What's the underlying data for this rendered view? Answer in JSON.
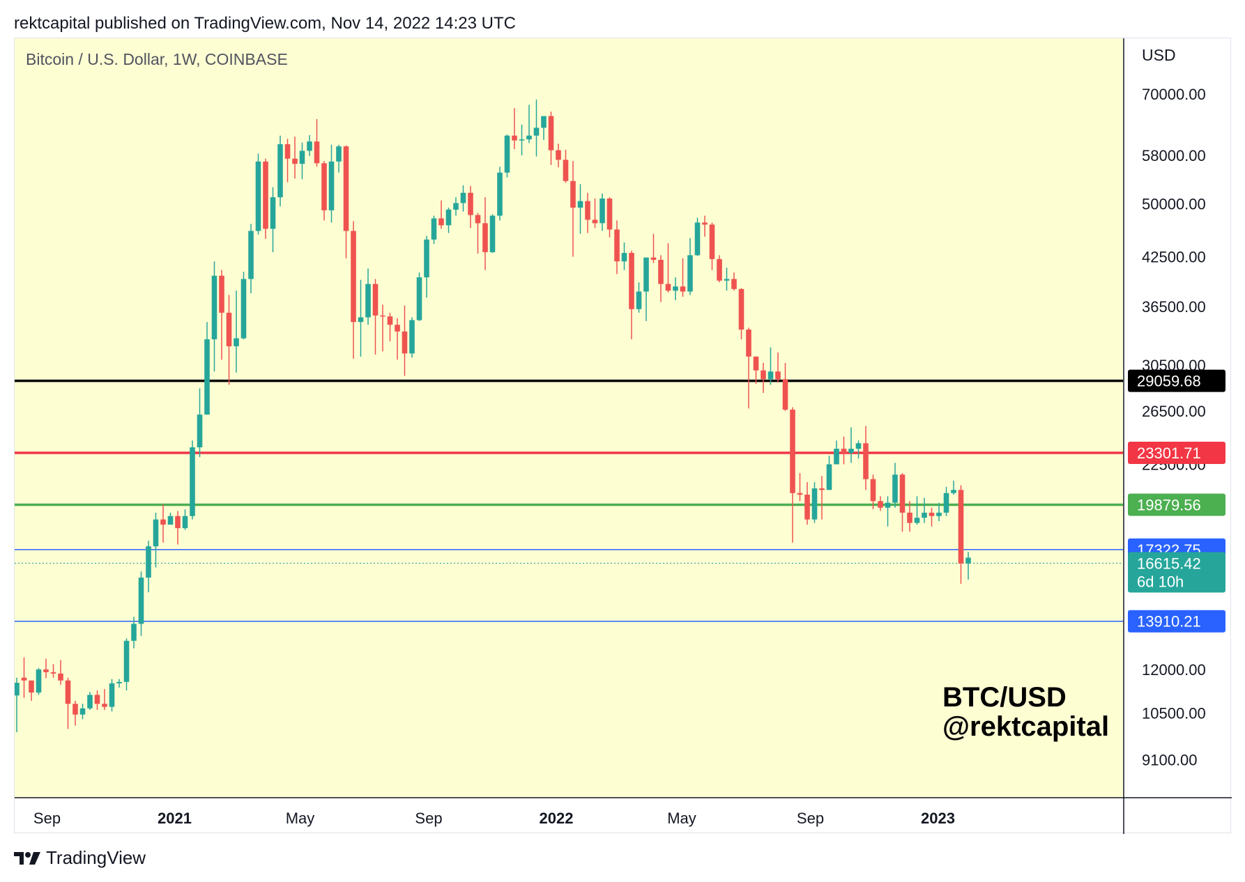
{
  "header": {
    "text": "rektcapital published on TradingView.com, Nov 14, 2022 14:23 UTC"
  },
  "footer": {
    "brand": "TradingView"
  },
  "watermark": {
    "line1": "BTC/USD",
    "line2": "@rektcapital"
  },
  "colors": {
    "chart_bg": "#fefed3",
    "up": "#26a69a",
    "down": "#ef5350",
    "support_black": "#000000",
    "level_red": "#f23645",
    "level_green": "#4caf50",
    "level_blue": "#2962ff",
    "current_price": "#26a69a"
  },
  "chart_data": {
    "type": "candlestick",
    "title": "Bitcoin / U.S. Dollar, 1W, COINBASE",
    "currency": "USD",
    "yscale": "log",
    "ylim": [
      8100,
      83000
    ],
    "x_tick_labels": [
      {
        "label": "Sep",
        "date": "2020-09-01",
        "bold": false
      },
      {
        "label": "2021",
        "date": "2021-01-01",
        "bold": true
      },
      {
        "label": "May",
        "date": "2021-05-01",
        "bold": false
      },
      {
        "label": "Sep",
        "date": "2021-09-01",
        "bold": false
      },
      {
        "label": "2022",
        "date": "2022-01-01",
        "bold": true
      },
      {
        "label": "May",
        "date": "2022-05-01",
        "bold": false
      },
      {
        "label": "Sep",
        "date": "2022-09-01",
        "bold": false
      },
      {
        "label": "2023",
        "date": "2023-01-01",
        "bold": true
      }
    ],
    "y_tick_labels": [
      {
        "label": "70000.00",
        "value": 70000
      },
      {
        "label": "58000.00",
        "value": 58000
      },
      {
        "label": "50000.00",
        "value": 50000
      },
      {
        "label": "42500.00",
        "value": 42500
      },
      {
        "label": "36500.00",
        "value": 36500
      },
      {
        "label": "30500.00",
        "value": 30500
      },
      {
        "label": "26500.00",
        "value": 26500
      },
      {
        "label": "22500.00",
        "value": 22500
      },
      {
        "label": "12000.00",
        "value": 12000
      },
      {
        "label": "10500.00",
        "value": 10500
      },
      {
        "label": "9100.00",
        "value": 9100
      }
    ],
    "horizontal_levels": [
      {
        "value": 29059.68,
        "label": "29059.68",
        "color": "#000000",
        "style": "solid"
      },
      {
        "value": 23301.71,
        "label": "23301.71",
        "color": "#f23645",
        "style": "solid"
      },
      {
        "value": 19879.56,
        "label": "19879.56",
        "color": "#4caf50",
        "style": "solid"
      },
      {
        "value": 17322.75,
        "label": "17322.75",
        "color": "#2962ff",
        "style": "solid"
      },
      {
        "value": 13910.21,
        "label": "13910.21",
        "color": "#2962ff",
        "style": "solid"
      }
    ],
    "current_price": {
      "value": 16615.42,
      "label": "16615.42",
      "countdown": "6d 10h"
    },
    "first_candle_date": "2020-08-03",
    "candles": [
      [
        11080,
        11520,
        9900,
        11700
      ],
      [
        11700,
        11600,
        11000,
        12450
      ],
      [
        11600,
        11180,
        10900,
        11600
      ],
      [
        11180,
        12000,
        11100,
        12050
      ],
      [
        12000,
        11900,
        11680,
        12400
      ],
      [
        11900,
        11850,
        11700,
        12200
      ],
      [
        11850,
        11600,
        11450,
        12350
      ],
      [
        11600,
        10800,
        10000,
        11700
      ],
      [
        10800,
        10450,
        10100,
        10900
      ],
      [
        10450,
        10650,
        10300,
        10800
      ],
      [
        10650,
        11100,
        10600,
        11200
      ],
      [
        11100,
        10800,
        10600,
        11250
      ],
      [
        10800,
        10700,
        10600,
        11300
      ],
      [
        10700,
        11500,
        10550,
        11650
      ],
      [
        11500,
        11550,
        11350,
        11650
      ],
      [
        11550,
        13100,
        11250,
        13200
      ],
      [
        13100,
        13800,
        12800,
        14100
      ],
      [
        13800,
        15900,
        13300,
        16200
      ],
      [
        15900,
        17500,
        15200,
        17800
      ],
      [
        17500,
        19000,
        16400,
        19400
      ],
      [
        19000,
        18700,
        17700,
        19900
      ],
      [
        18700,
        19200,
        18700,
        19400
      ],
      [
        19200,
        18500,
        17600,
        19500
      ],
      [
        18500,
        19200,
        18400,
        19600
      ],
      [
        19200,
        23700,
        19000,
        24200
      ],
      [
        23700,
        26200,
        23000,
        28400
      ],
      [
        26200,
        33000,
        26500,
        34800
      ],
      [
        33000,
        40100,
        29900,
        41900
      ],
      [
        40100,
        35800,
        31000,
        40800
      ],
      [
        35800,
        32300,
        28700,
        37800
      ],
      [
        32300,
        33100,
        29800,
        38300
      ],
      [
        33100,
        39700,
        33000,
        40600
      ],
      [
        39700,
        46000,
        38000,
        47000
      ],
      [
        46000,
        56900,
        45500,
        58300
      ],
      [
        56900,
        46300,
        44900,
        57400
      ],
      [
        46300,
        51000,
        43100,
        52600
      ],
      [
        51000,
        60000,
        49600,
        61600
      ],
      [
        60000,
        57400,
        53400,
        61000
      ],
      [
        57400,
        56500,
        54000,
        61400
      ],
      [
        56500,
        58800,
        53900,
        60300
      ],
      [
        58800,
        60500,
        57900,
        61700
      ],
      [
        60500,
        56600,
        56000,
        64800
      ],
      [
        56600,
        49000,
        47500,
        57000
      ],
      [
        49000,
        56900,
        47200,
        59900
      ],
      [
        56900,
        59600,
        55000,
        59900
      ],
      [
        59600,
        46000,
        42300,
        59800
      ],
      [
        46000,
        34800,
        31100,
        47400
      ],
      [
        34800,
        35300,
        31300,
        39600
      ],
      [
        35300,
        39100,
        34500,
        41000
      ],
      [
        39100,
        35500,
        31500,
        39700
      ],
      [
        35500,
        35400,
        31800,
        36700
      ],
      [
        35400,
        34500,
        32800,
        35800
      ],
      [
        34500,
        33800,
        31000,
        35200
      ],
      [
        33800,
        31600,
        29500,
        36600
      ],
      [
        31600,
        35000,
        31200,
        35300
      ],
      [
        35000,
        39900,
        34900,
        40500
      ],
      [
        39900,
        44800,
        37500,
        45300
      ],
      [
        44800,
        47800,
        44200,
        48200
      ],
      [
        47800,
        46800,
        46300,
        50500
      ],
      [
        46800,
        49100,
        45700,
        49400
      ],
      [
        49100,
        50100,
        48200,
        51000
      ],
      [
        50100,
        51700,
        48800,
        52900
      ],
      [
        51700,
        48300,
        46400,
        52800
      ],
      [
        48300,
        47100,
        42900,
        48600
      ],
      [
        47100,
        43100,
        40800,
        51000
      ],
      [
        43100,
        48200,
        43000,
        48400
      ],
      [
        48200,
        55000,
        47500,
        56000
      ],
      [
        55000,
        61600,
        54200,
        61800
      ],
      [
        61600,
        60700,
        59100,
        67000
      ],
      [
        60700,
        60900,
        58000,
        63700
      ],
      [
        60900,
        61600,
        60200,
        67700
      ],
      [
        61600,
        63100,
        57800,
        68800
      ],
      [
        63100,
        65400,
        60800,
        64900
      ],
      [
        65400,
        58900,
        56300,
        66300
      ],
      [
        58900,
        57200,
        55900,
        60100
      ],
      [
        57200,
        53600,
        53300,
        59000
      ],
      [
        53600,
        49400,
        42500,
        57000
      ],
      [
        49400,
        50400,
        45600,
        53100
      ],
      [
        50400,
        47600,
        45700,
        51700
      ],
      [
        47600,
        47100,
        46400,
        50800
      ],
      [
        47100,
        50800,
        46000,
        51600
      ],
      [
        50800,
        46200,
        45100,
        51000
      ],
      [
        46200,
        41900,
        40300,
        47500
      ],
      [
        41900,
        43000,
        40800,
        44400
      ],
      [
        43000,
        36200,
        33000,
        43300
      ],
      [
        36200,
        38200,
        35800,
        39300
      ],
      [
        38200,
        42400,
        34900,
        42400
      ],
      [
        42400,
        42100,
        41700,
        45600
      ],
      [
        42100,
        39100,
        37000,
        42700
      ],
      [
        39100,
        38300,
        38100,
        44300
      ],
      [
        38300,
        38800,
        37200,
        39900
      ],
      [
        38800,
        38200,
        37600,
        42300
      ],
      [
        38200,
        42700,
        37800,
        45000
      ],
      [
        42700,
        47200,
        42600,
        47900
      ],
      [
        47200,
        46900,
        45200,
        48200
      ],
      [
        46900,
        42200,
        40800,
        47200
      ],
      [
        42200,
        39500,
        39300,
        42700
      ],
      [
        39500,
        39700,
        38300,
        41100
      ],
      [
        39700,
        38500,
        38300,
        40500
      ],
      [
        38500,
        34000,
        33000,
        38600
      ],
      [
        34000,
        31300,
        26700,
        34200
      ],
      [
        31300,
        30000,
        28800,
        31300
      ],
      [
        30000,
        29200,
        28000,
        30700
      ],
      [
        29200,
        29900,
        28700,
        32200
      ],
      [
        29900,
        29200,
        28900,
        31700
      ],
      [
        29200,
        26600,
        26500,
        30700
      ],
      [
        26600,
        20600,
        17700,
        26800
      ],
      [
        20600,
        20500,
        20100,
        21900
      ],
      [
        20500,
        19000,
        18700,
        21300
      ],
      [
        19000,
        20900,
        18800,
        21300
      ],
      [
        20900,
        20800,
        19000,
        21700
      ],
      [
        20800,
        22500,
        20800,
        23100
      ],
      [
        22500,
        23600,
        22500,
        24200
      ],
      [
        23600,
        23300,
        22500,
        24500
      ],
      [
        23300,
        23600,
        22600,
        25200
      ],
      [
        23600,
        24000,
        22900,
        24200
      ],
      [
        24000,
        21500,
        20800,
        25300
      ],
      [
        21500,
        20100,
        19600,
        21800
      ],
      [
        20100,
        19700,
        19500,
        20400
      ],
      [
        19700,
        20000,
        18600,
        20400
      ],
      [
        20000,
        21800,
        19700,
        22600
      ],
      [
        21800,
        19400,
        18300,
        21900
      ],
      [
        19400,
        18800,
        18300,
        20100
      ],
      [
        18800,
        19100,
        18700,
        20400
      ],
      [
        19100,
        19400,
        18800,
        20300
      ],
      [
        19400,
        19200,
        18600,
        19700
      ],
      [
        19200,
        19400,
        18900,
        20000
      ],
      [
        19400,
        20600,
        19200,
        21000
      ],
      [
        20600,
        20800,
        20500,
        21400
      ],
      [
        20800,
        16600,
        15600,
        21100
      ],
      [
        16600,
        16900,
        15800,
        17200
      ]
    ]
  }
}
